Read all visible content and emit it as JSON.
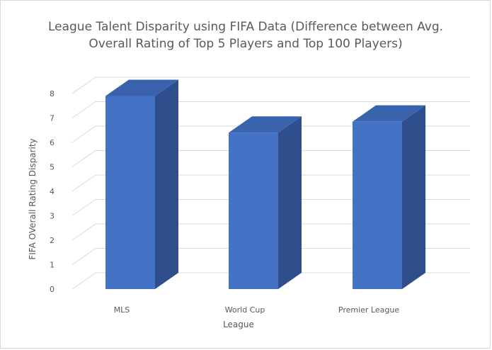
{
  "chart_data": {
    "type": "bar",
    "title_lines": [
      "League Talent Disparity using FIFA Data (Difference between Avg.",
      "Overall Rating of Top 5 Players and Top 100 Players)"
    ],
    "categories": [
      "MLS",
      "World Cup",
      "Premier League"
    ],
    "values": [
      7.9,
      6.4,
      6.85
    ],
    "xlabel": "League",
    "ylabel": "FIFA OVerall Rating Disparity",
    "ylim": [
      0,
      8
    ],
    "yticks": [
      0,
      1,
      2,
      3,
      4,
      5,
      6,
      7,
      8
    ],
    "grid": true,
    "legend": "none",
    "style": "3d-column",
    "colors": {
      "front": "#4472C4",
      "side": "#2F4F8C",
      "top": "#3A63AD"
    }
  }
}
